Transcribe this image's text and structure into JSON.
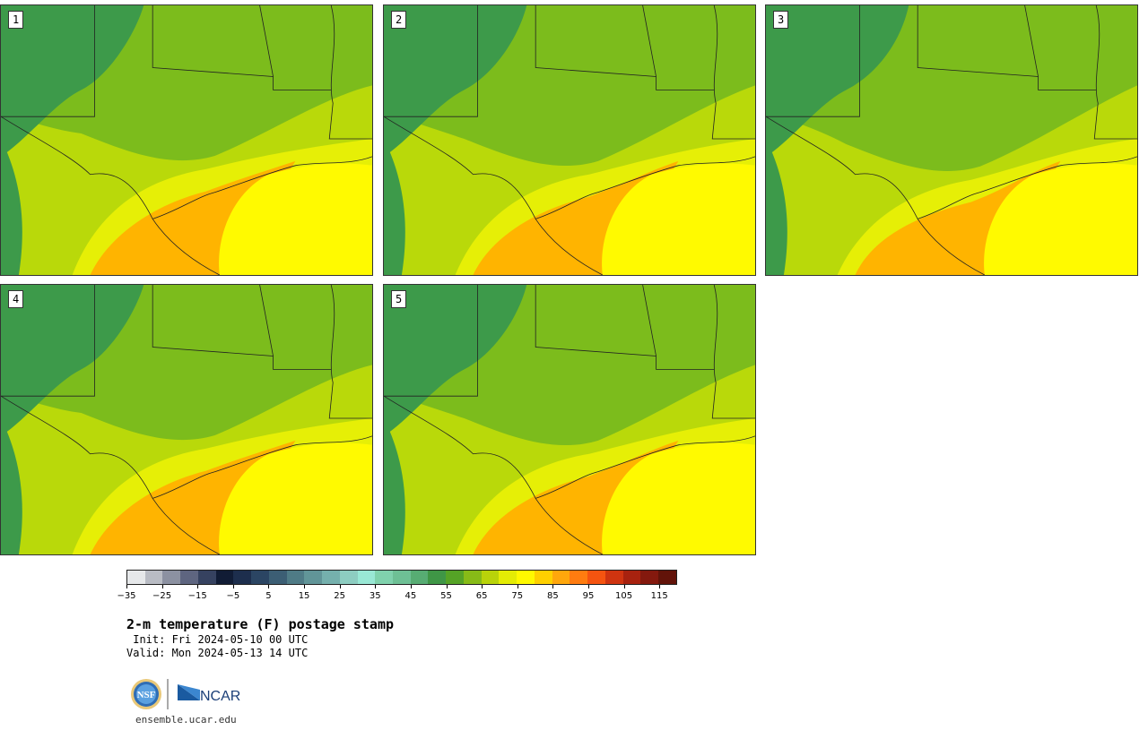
{
  "panels": [
    {
      "id": "p1",
      "label": "1",
      "variant": 0
    },
    {
      "id": "p2",
      "label": "2",
      "variant": 1
    },
    {
      "id": "p3",
      "label": "3",
      "variant": 2
    },
    {
      "id": "p4",
      "label": "4",
      "variant": 3
    },
    {
      "id": "p5",
      "label": "5",
      "variant": 4
    }
  ],
  "colorbar": {
    "colors": [
      "#e6e8ea",
      "#b9bcc4",
      "#8c91a1",
      "#5e6580",
      "#364260",
      "#111c35",
      "#1d2e4d",
      "#2b4563",
      "#3c5e74",
      "#4f7b86",
      "#619598",
      "#75b0ad",
      "#8dcdc1",
      "#99e8d5",
      "#80d2ad",
      "#6ec095",
      "#57ac73",
      "#3f9646",
      "#55a326",
      "#87bb17",
      "#b9d30a",
      "#e4ec05",
      "#fff900",
      "#ffd000",
      "#ffa70c",
      "#ff7c10",
      "#f55410",
      "#cf3410",
      "#a8220f",
      "#84190e",
      "#621309"
    ],
    "tick_labels": [
      "−35",
      "−25",
      "−15",
      "−5",
      "5",
      "15",
      "25",
      "35",
      "45",
      "55",
      "65",
      "75",
      "85",
      "95",
      "105",
      "115"
    ],
    "tick_values": [
      -35,
      -25,
      -15,
      -5,
      5,
      15,
      25,
      35,
      45,
      55,
      65,
      75,
      85,
      95,
      105,
      115
    ],
    "min": -35,
    "max": 120
  },
  "title": "2-m temperature (F) postage stamp",
  "init": " Init: Fri 2024-05-10 00 UTC",
  "valid": "Valid: Mon 2024-05-13 14 UTC",
  "logos": {
    "nsf": "NSF",
    "ncar": "NCAR"
  },
  "url": "ensemble.ucar.edu",
  "colors": {
    "cool": "#3d9a4a",
    "mild": "#7cbc1c",
    "warm": "#b9d90a",
    "hot": "#e6ef06",
    "gulf": "#fffa00",
    "coast": "#ffb400"
  }
}
